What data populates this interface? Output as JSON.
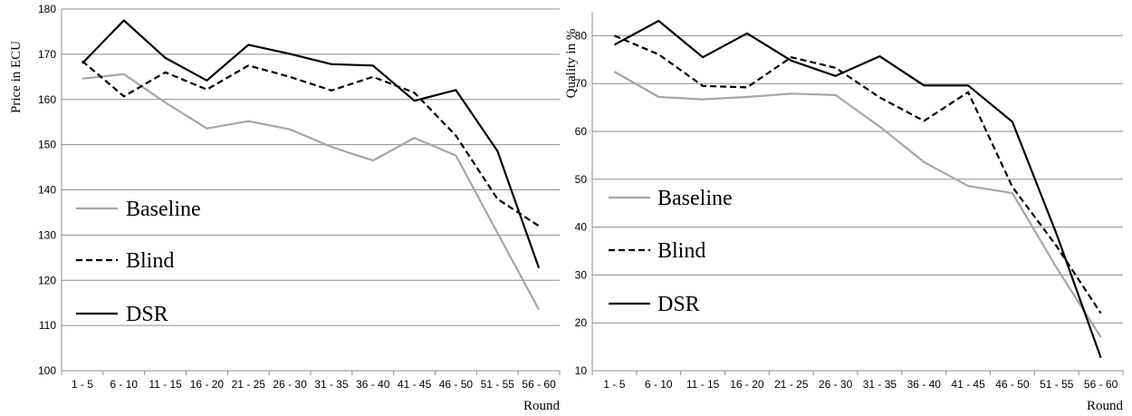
{
  "chart_data": [
    {
      "type": "line",
      "ylabel": "Price in ECU",
      "xlabel": "Round",
      "ylim": [
        100,
        180
      ],
      "y_ticks": [
        100,
        110,
        120,
        130,
        140,
        150,
        160,
        170,
        180
      ],
      "categories": [
        "1 - 5",
        "6 - 10",
        "11 - 15",
        "16 - 20",
        "21 - 25",
        "26 - 30",
        "31 - 35",
        "36 - 40",
        "41 - 45",
        "46 - 50",
        "51 - 55",
        "56 - 60"
      ],
      "grid": true,
      "legend_position": "left",
      "series": [
        {
          "name": "Baseline",
          "color": "#a6a6a6",
          "dash": "solid",
          "values": [
            164.6,
            165.6,
            159.3,
            153.6,
            155.2,
            153.4,
            149.5,
            146.5,
            151.5,
            147.6,
            130.5,
            113.5
          ]
        },
        {
          "name": "Blind",
          "color": "#000000",
          "dash": "dashed",
          "values": [
            168.5,
            160.7,
            166.0,
            162.2,
            167.5,
            165.0,
            162.0,
            165.0,
            161.5,
            152.0,
            138.0,
            132.0
          ]
        },
        {
          "name": "DSR",
          "color": "#000000",
          "dash": "solid",
          "values": [
            168.0,
            177.5,
            169.2,
            164.2,
            172.1,
            170.1,
            167.8,
            167.5,
            159.7,
            162.1,
            148.6,
            122.7
          ]
        }
      ]
    },
    {
      "type": "line",
      "ylabel": "Quality in %",
      "xlabel": "Round",
      "ylim": [
        10,
        85
      ],
      "y_ticks": [
        10,
        20,
        30,
        40,
        50,
        60,
        70,
        80
      ],
      "categories": [
        "1 - 5",
        "6 - 10",
        "11 - 15",
        "16 - 20",
        "21 - 25",
        "26 - 30",
        "31 - 35",
        "36 - 40",
        "41 - 45",
        "46 - 50",
        "51 - 55",
        "56 - 60"
      ],
      "grid": true,
      "legend_position": "left",
      "series": [
        {
          "name": "Baseline",
          "color": "#a6a6a6",
          "dash": "solid",
          "values": [
            72.5,
            67.2,
            66.7,
            67.2,
            67.9,
            67.6,
            61.0,
            53.6,
            48.6,
            47.1,
            31.5,
            17.0
          ]
        },
        {
          "name": "Blind",
          "color": "#000000",
          "dash": "dashed",
          "values": [
            80.0,
            76.1,
            69.5,
            69.2,
            75.5,
            73.3,
            67.1,
            62.2,
            68.2,
            48.4,
            36.0,
            22.0
          ]
        },
        {
          "name": "DSR",
          "color": "#000000",
          "dash": "solid",
          "values": [
            78.1,
            83.1,
            75.5,
            80.5,
            74.8,
            71.6,
            75.7,
            69.6,
            69.6,
            62.0,
            38.5,
            12.7
          ]
        }
      ]
    }
  ]
}
